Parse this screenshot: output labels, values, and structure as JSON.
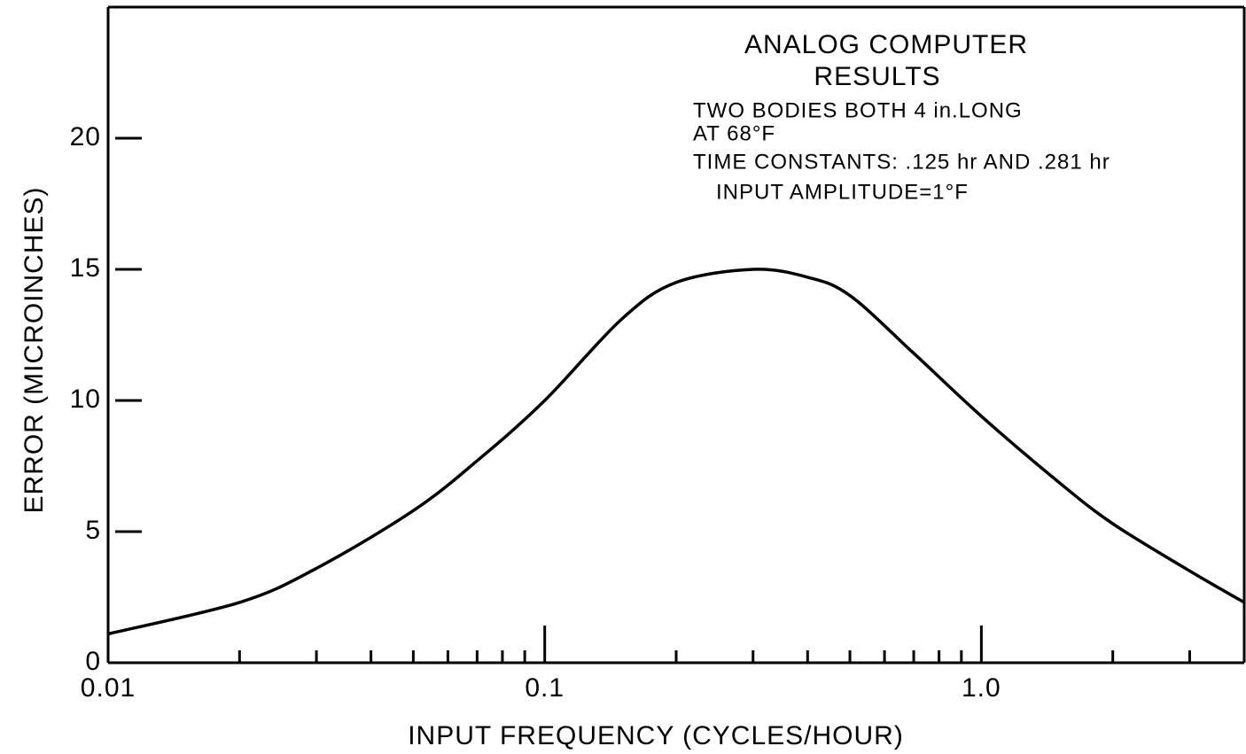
{
  "chart_data": {
    "type": "line",
    "title_lines": [
      "ANALOG COMPUTER",
      "RESULTS"
    ],
    "annotations": [
      "TWO BODIES BOTH 4 in.LONG",
      "AT 68°F",
      "TIME CONSTANTS: .125 hr AND .281 hr",
      "INPUT AMPLITUDE=1°F"
    ],
    "x_label": "INPUT FREQUENCY (CYCLES/HOUR)",
    "y_label": "ERROR   (MICROINCHES)",
    "x_log": true,
    "xlim": [
      0.01,
      4
    ],
    "ylim": [
      0,
      25
    ],
    "xticks": [
      0.01,
      0.1,
      {
        "value": 1,
        "label": "1.0"
      }
    ],
    "xminor_ticks": [
      0.02,
      0.03,
      0.04,
      0.05,
      0.06,
      0.07,
      0.08,
      0.09,
      0.2,
      0.3,
      0.4,
      0.5,
      0.6,
      0.7,
      0.8,
      0.9,
      2,
      3
    ],
    "yticks": [
      0,
      5,
      10,
      15,
      20
    ],
    "series": [
      {
        "color": "#000000",
        "x": [
          0.01,
          0.02,
          0.03,
          0.05,
          0.07,
          0.1,
          0.15,
          0.2,
          0.3,
          0.4,
          0.5,
          0.7,
          1,
          1.5,
          2,
          3,
          4
        ],
        "values": [
          1.1,
          2.3,
          3.6,
          5.8,
          7.7,
          10.0,
          13.1,
          14.5,
          15.0,
          14.7,
          14.0,
          11.8,
          9.4,
          6.9,
          5.3,
          3.5,
          2.3
        ]
      }
    ]
  }
}
